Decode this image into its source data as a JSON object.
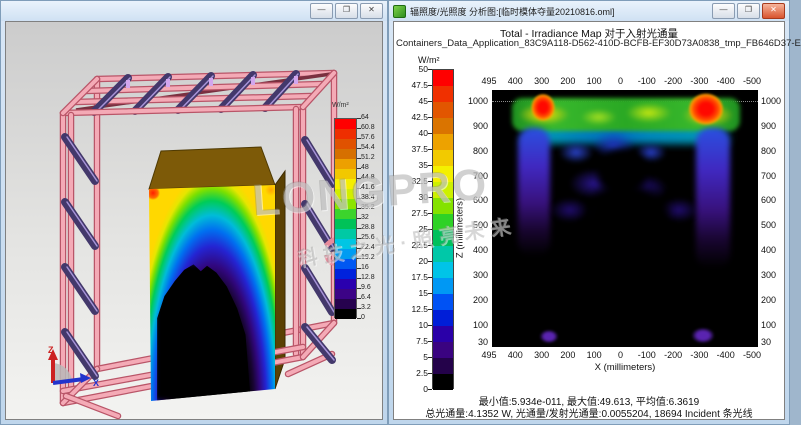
{
  "watermark": {
    "line1": "LONGPRO",
    "line2": "科技之光·照亮未来"
  },
  "left_window": {
    "titlebar": {
      "minimize": "—",
      "restore": "❐",
      "close": "✕"
    },
    "legend": {
      "unit": "W/m²",
      "labels": [
        "64",
        "60.8",
        "57.6",
        "54.4",
        "51.2",
        "48",
        "44.8",
        "41.6",
        "38.4",
        "35.2",
        "32",
        "28.8",
        "25.6",
        "22.4",
        "19.2",
        "16",
        "12.8",
        "9.6",
        "6.4",
        "3.2",
        "0"
      ],
      "colors": [
        "#ff0000",
        "#ee2e00",
        "#e05200",
        "#d67000",
        "#eda000",
        "#f2c800",
        "#f5ee00",
        "#d2ee00",
        "#8ce400",
        "#3cd42c",
        "#00c258",
        "#00c9a4",
        "#00c6e4",
        "#009cf2",
        "#0058f2",
        "#0022dc",
        "#2a00ae",
        "#3c0386",
        "#26024e",
        "#000000"
      ]
    },
    "triad": {
      "up_label": "Z",
      "right_label": "X",
      "up_color": "#dd2222",
      "right_color": "#2233cc"
    }
  },
  "right_window": {
    "titlebar": {
      "title": "辐照度/光照度 分析图:[临时模体夺量20210816.oml]",
      "minimize": "—",
      "restore": "❐",
      "close": "✕"
    },
    "chart": {
      "title": "Total - Irradiance Map 对于入射光通量",
      "subtitle": "Containers_Data_Application_83C9A118-D562-410D-BCFB-EF30D73A0838_tmp_FB646D37-E",
      "colorbar": {
        "unit": "W/m²",
        "labels": [
          "50",
          "47.5",
          "45",
          "42.5",
          "40",
          "37.5",
          "35",
          "32.5",
          "30",
          "27.5",
          "25",
          "22.5",
          "20",
          "17.5",
          "15",
          "12.5",
          "10",
          "7.5",
          "5",
          "2.5",
          "0"
        ],
        "colors": [
          "#ff0000",
          "#f03000",
          "#e25600",
          "#da7400",
          "#eda200",
          "#f2ca00",
          "#f4f000",
          "#cdf000",
          "#84e200",
          "#2ed226",
          "#00c05c",
          "#00c8a8",
          "#00c4e8",
          "#0098f4",
          "#0052f4",
          "#001ed8",
          "#2a00a8",
          "#3a0380",
          "#24024a",
          "#000000"
        ]
      },
      "x_ticks": [
        "495",
        "400",
        "300",
        "200",
        "100",
        "0",
        "-100",
        "-200",
        "-300",
        "-400",
        "-500"
      ],
      "y_ticks": [
        "1000",
        "900",
        "800",
        "700",
        "600",
        "500",
        "400",
        "300",
        "200",
        "100",
        "30"
      ],
      "xlabel": "X (millimeters)",
      "ylabel": "Z (millimeters)"
    },
    "footer": {
      "line1": "最小值:5.934e-011, 最大值:49.613, 平均值:6.3619",
      "line2": "总光通量:4.1352 W, 光通量/发射光通量:0.0055204, 18694 Incident 条光线"
    }
  },
  "chart_data": {
    "type": "heatmap",
    "title": "Total - Irradiance Map 对于入射光通量",
    "subtitle": "Containers_Data_Application_83C9A118-D562-410D-BCFB-EF30D73A0838_tmp_FB646D37-E",
    "xlabel": "X (millimeters)",
    "ylabel": "Z (millimeters)",
    "x_range_mm": [
      495,
      -500
    ],
    "z_range_mm": [
      30,
      1000
    ],
    "x_ticks": [
      495,
      400,
      300,
      200,
      100,
      0,
      -100,
      -200,
      -300,
      -400,
      -500
    ],
    "z_ticks": [
      1000,
      900,
      800,
      700,
      600,
      500,
      400,
      300,
      200,
      100,
      30
    ],
    "colorbar": {
      "unit": "W/m²",
      "min": 0,
      "max": 50,
      "step": 2.5
    },
    "stats": {
      "min_W_m2": "5.934e-011",
      "max_W_m2": 49.613,
      "mean_W_m2": 6.3619,
      "total_flux_W": 4.1352,
      "flux_over_emitted_flux": 0.0055204,
      "incident_rays": 18694
    },
    "features": [
      {
        "label": "hot-spot",
        "x_mm": 300,
        "z_mm": 980,
        "approx_W_m2": 50
      },
      {
        "label": "hot-spot",
        "x_mm": -300,
        "z_mm": 980,
        "approx_W_m2": 50
      },
      {
        "label": "green-yellow band along top edge near z=1000",
        "approx_W_m2": "25-40"
      },
      {
        "label": "blue-violet arch descending along x=±300 columns",
        "approx_W_m2": "5-15"
      },
      {
        "label": "black shadow region (phantom silhouette) over lower half",
        "approx_W_m2": "~0"
      }
    ],
    "left_3d_legend": {
      "unit": "W/m²",
      "min": 0,
      "max": 64,
      "step": 3.2
    }
  }
}
